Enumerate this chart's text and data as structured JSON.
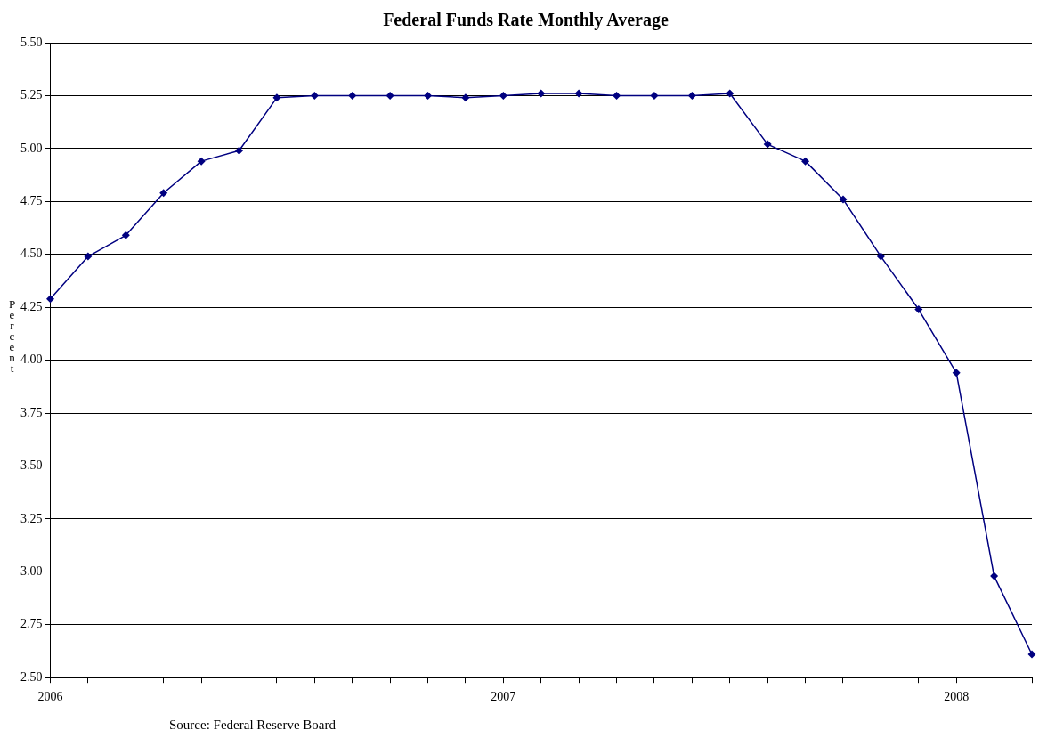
{
  "chart_data": {
    "type": "line",
    "title": "Federal Funds Rate Monthly Average",
    "ylabel": "Percent",
    "annotations": [
      "Source: Federal Reserve Board"
    ],
    "categories": [
      "2006",
      null,
      null,
      null,
      null,
      null,
      null,
      null,
      null,
      null,
      null,
      null,
      "2007",
      null,
      null,
      null,
      null,
      null,
      null,
      null,
      null,
      null,
      null,
      null,
      "2008",
      null,
      null
    ],
    "series": [
      {
        "color": "#000080",
        "values": [
          4.29,
          4.49,
          4.59,
          4.79,
          4.94,
          4.99,
          5.24,
          5.25,
          5.25,
          5.25,
          5.25,
          5.24,
          5.25,
          5.26,
          5.26,
          5.25,
          5.25,
          5.25,
          5.26,
          5.02,
          4.94,
          4.76,
          4.49,
          4.24,
          3.94,
          2.98,
          2.61
        ]
      }
    ],
    "ylim": [
      2.5,
      5.5
    ],
    "yticks": [
      {
        "value": 2.5,
        "label": "2.50"
      },
      {
        "value": 2.75,
        "label": "2.75"
      },
      {
        "value": 3,
        "label": "3.00"
      },
      {
        "value": 3.25,
        "label": "3.25"
      },
      {
        "value": 3.5,
        "label": "3.50"
      },
      {
        "value": 3.75,
        "label": "3.75"
      },
      {
        "value": 4,
        "label": "4.00"
      },
      {
        "value": 4.25,
        "label": "4.25"
      },
      {
        "value": 4.5,
        "label": "4.50"
      },
      {
        "value": 4.75,
        "label": "4.75"
      },
      {
        "value": 5,
        "label": "5.00"
      },
      {
        "value": 5.25,
        "label": "5.25"
      },
      {
        "value": 5.5,
        "label": "5.50"
      }
    ],
    "grid": "y",
    "legend": false,
    "marker": "diamond",
    "line_style": "solid"
  }
}
